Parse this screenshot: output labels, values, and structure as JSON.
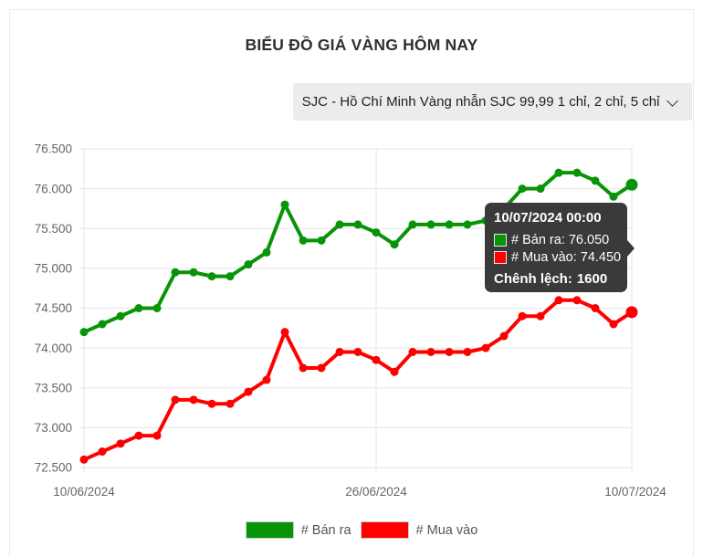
{
  "header": {
    "title": "BIỂU ĐỒ GIÁ VÀNG HÔM NAY"
  },
  "selector": {
    "selected_option": "SJC - Hồ Chí Minh Vàng nhẫn SJC 99,99 1 chỉ, 2 chỉ, 5 chỉ"
  },
  "colors": {
    "ban_ra": "#089408",
    "mua_vao": "#ff0000",
    "grid": "#e6e6e6",
    "tick_text": "#666666",
    "tooltip_bg": "#3a3a3a"
  },
  "chart_data": {
    "type": "line",
    "title": "",
    "xlabel": "",
    "ylabel": "",
    "grid": true,
    "legend_position": "bottom",
    "ylim": [
      72500,
      76500
    ],
    "ytick_step": 500,
    "yticks": [
      "76.500",
      "76.000",
      "75.500",
      "75.000",
      "74.500",
      "74.000",
      "73.500",
      "73.000",
      "72.500"
    ],
    "xticks": [
      {
        "label": "10/06/2024",
        "index": 0
      },
      {
        "label": "26/06/2024",
        "index": 16
      },
      {
        "label": "10/07/2024",
        "index": 30
      }
    ],
    "x": [
      "10/06/2024",
      "11/06/2024",
      "12/06/2024",
      "13/06/2024",
      "14/06/2024",
      "15/06/2024",
      "16/06/2024",
      "17/06/2024",
      "18/06/2024",
      "19/06/2024",
      "20/06/2024",
      "21/06/2024",
      "22/06/2024",
      "23/06/2024",
      "24/06/2024",
      "25/06/2024",
      "26/06/2024",
      "27/06/2024",
      "28/06/2024",
      "29/06/2024",
      "30/06/2024",
      "01/07/2024",
      "02/07/2024",
      "03/07/2024",
      "04/07/2024",
      "05/07/2024",
      "06/07/2024",
      "07/07/2024",
      "08/07/2024",
      "09/07/2024",
      "10/07/2024"
    ],
    "series": [
      {
        "name": "# Bán ra",
        "color": "#089408",
        "values": [
          74200,
          74300,
          74400,
          74500,
          74500,
          74950,
          74950,
          74900,
          74900,
          75050,
          75200,
          75800,
          75350,
          75350,
          75550,
          75550,
          75450,
          75300,
          75550,
          75550,
          75550,
          75550,
          75600,
          75750,
          76000,
          76000,
          76200,
          76200,
          76100,
          75900,
          76050
        ]
      },
      {
        "name": "# Mua vào",
        "color": "#ff0000",
        "values": [
          72600,
          72700,
          72800,
          72900,
          72900,
          73350,
          73350,
          73300,
          73300,
          73450,
          73600,
          74200,
          73750,
          73750,
          73950,
          73950,
          73850,
          73700,
          73950,
          73950,
          73950,
          73950,
          74000,
          74150,
          74400,
          74400,
          74600,
          74600,
          74500,
          74300,
          74450
        ]
      }
    ]
  },
  "legend": {
    "items": [
      {
        "label": "# Bán ra",
        "color": "#089408"
      },
      {
        "label": "# Mua vào",
        "color": "#ff0000"
      }
    ]
  },
  "tooltip": {
    "datetime": "10/07/2024 00:00",
    "rows": [
      {
        "label": "# Bán ra:",
        "value": "76.050",
        "color": "#089408"
      },
      {
        "label": "# Mua vào:",
        "value": "74.450",
        "color": "#ff0000"
      }
    ],
    "diff_label": "Chênh lệch:",
    "diff_value": "1600"
  }
}
